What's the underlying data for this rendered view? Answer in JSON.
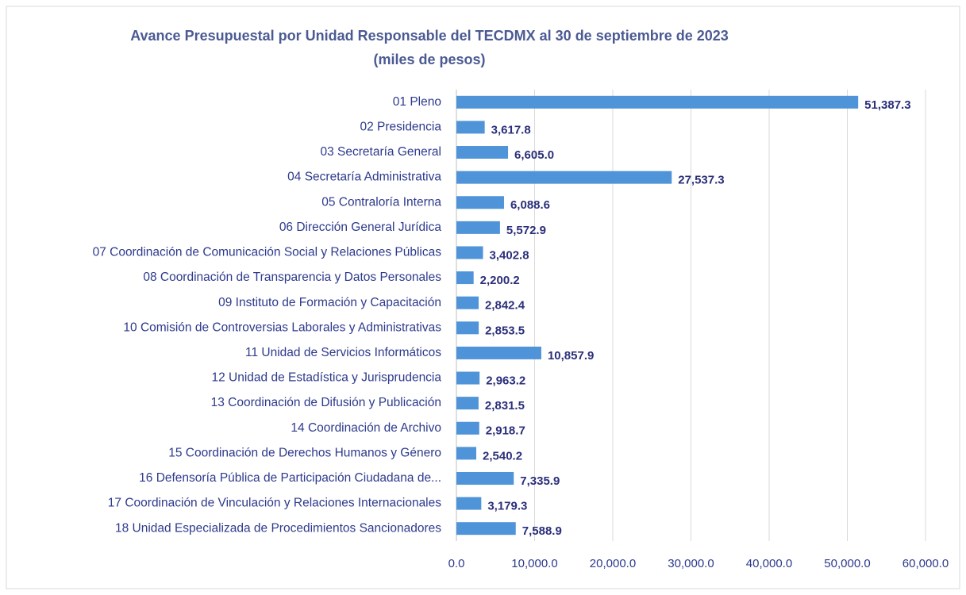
{
  "chart_data": {
    "type": "hbar",
    "title": "Avance Presupuestal por Unidad Responsable del TECDMX al 30 de  septiembre de 2023",
    "subtitle": "(miles de pesos)",
    "categories": [
      "01 Pleno",
      "02 Presidencia",
      "03 Secretaría General",
      "04 Secretaría Administrativa",
      "05 Contraloría Interna",
      "06 Dirección General Jurídica",
      "07 Coordinación de Comunicación Social y Relaciones Públicas",
      "08 Coordinación de Transparencia y Datos Personales",
      "09 Instituto de Formación y Capacitación",
      "10 Comisión de Controversias Laborales y Administrativas",
      "11 Unidad de Servicios Informáticos",
      "12 Unidad de Estadística y Jurisprudencia",
      "13 Coordinación de Difusión y Publicación",
      "14 Coordinación de Archivo",
      "15 Coordinación de Derechos Humanos y Género",
      "16 Defensoría Pública de Participación Ciudadana de...",
      "17 Coordinación de Vinculación y Relaciones Internacionales",
      "18 Unidad Especializada de Procedimientos Sancionadores"
    ],
    "values": [
      51387.3,
      3617.8,
      6605.0,
      27537.3,
      6088.6,
      5572.9,
      3402.8,
      2200.2,
      2842.4,
      2853.5,
      10857.9,
      2963.2,
      2831.5,
      2918.7,
      2540.2,
      7335.9,
      3179.3,
      7588.9
    ],
    "value_labels": [
      "51,387.3",
      "3,617.8",
      "6,605.0",
      "27,537.3",
      "6,088.6",
      "5,572.9",
      "3,402.8",
      "2,200.2",
      "2,842.4",
      "2,853.5",
      "10,857.9",
      "2,963.2",
      "2,831.5",
      "2,918.7",
      "2,540.2",
      "7,335.9",
      "3,179.3",
      "7,588.9"
    ],
    "color": "#4f93d8",
    "xlim": [
      0,
      60000
    ],
    "xticks": [
      {
        "value": 0,
        "label": "0.0"
      },
      {
        "value": 10000,
        "label": "10,000.0"
      },
      {
        "value": 20000,
        "label": "20,000.0"
      },
      {
        "value": 30000,
        "label": "30,000.0"
      },
      {
        "value": 40000,
        "label": "40,000.0"
      },
      {
        "value": 50000,
        "label": "50,000.0"
      },
      {
        "value": 60000,
        "label": "60,000.0"
      }
    ],
    "grid": true
  }
}
